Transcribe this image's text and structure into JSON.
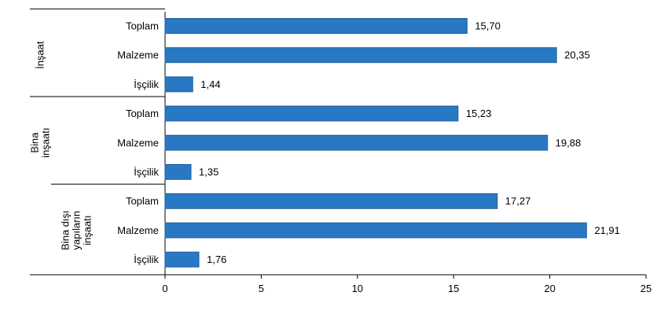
{
  "chart_data": {
    "type": "bar",
    "orientation": "horizontal",
    "groups": [
      {
        "name": "İnşaat",
        "name_lines": [
          "İnşaat"
        ],
        "bars": [
          {
            "category": "Toplam",
            "value": 15.7,
            "label": "15,70"
          },
          {
            "category": "Malzeme",
            "value": 20.35,
            "label": "20,35"
          },
          {
            "category": "İşçilik",
            "value": 1.44,
            "label": "1,44"
          }
        ]
      },
      {
        "name": "Bina inşaatı",
        "name_lines": [
          "Bina",
          "inşaatı"
        ],
        "bars": [
          {
            "category": "Toplam",
            "value": 15.23,
            "label": "15,23"
          },
          {
            "category": "Malzeme",
            "value": 19.88,
            "label": "19,88"
          },
          {
            "category": "İşçilik",
            "value": 1.35,
            "label": "1,35"
          }
        ]
      },
      {
        "name": "Bina dışı yapıların inşaatı",
        "name_lines": [
          "Bina dışı",
          "yapıların",
          "inşaatı"
        ],
        "bars": [
          {
            "category": "Toplam",
            "value": 17.27,
            "label": "17,27"
          },
          {
            "category": "Malzeme",
            "value": 21.91,
            "label": "21,91"
          },
          {
            "category": "İşçilik",
            "value": 1.76,
            "label": "1,76"
          }
        ]
      }
    ],
    "xlim": [
      0,
      25
    ],
    "xticks": [
      0,
      5,
      10,
      15,
      20,
      25
    ],
    "bar_color": "#2878c4",
    "grid": false,
    "title": "",
    "xlabel": "",
    "ylabel": ""
  }
}
